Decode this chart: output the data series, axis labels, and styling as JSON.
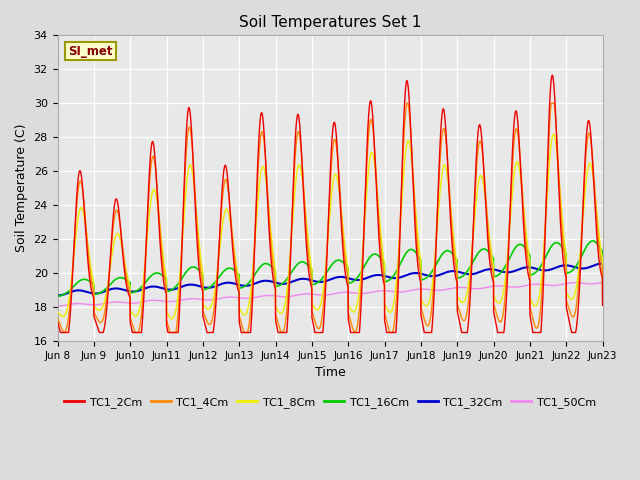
{
  "title": "Soil Temperatures Set 1",
  "xlabel": "Time",
  "ylabel": "Soil Temperature (C)",
  "ylim": [
    16,
    34
  ],
  "background_color": "#dcdcdc",
  "plot_bg_color": "#e8e8e8",
  "annotation_text": "SI_met",
  "annotation_bg": "#ffffcc",
  "annotation_border": "#999900",
  "series_colors": {
    "TC1_2Cm": "#ee0000",
    "TC1_4Cm": "#ff8800",
    "TC1_8Cm": "#eeee00",
    "TC1_16Cm": "#00cc00",
    "TC1_32Cm": "#0000cc",
    "TC1_50Cm": "#ee88ee"
  },
  "tick_labels": [
    "Jun 8",
    "Jun 9",
    "Jun 10",
    "Jun 11",
    "Jun 12",
    "Jun 13",
    "Jun 14",
    "Jun 15",
    "Jun 16",
    "Jun 17",
    "Jun 18",
    "Jun 19",
    "Jun 20",
    "Jun 21",
    "Jun 22",
    "Jun 23"
  ],
  "tick_positions": [
    0,
    1,
    2,
    3,
    4,
    5,
    6,
    7,
    8,
    9,
    10,
    11,
    12,
    13,
    14,
    15
  ],
  "yticks": [
    16,
    18,
    20,
    22,
    24,
    26,
    28,
    30,
    32,
    34
  ],
  "figsize": [
    6.4,
    4.8
  ],
  "dpi": 100
}
